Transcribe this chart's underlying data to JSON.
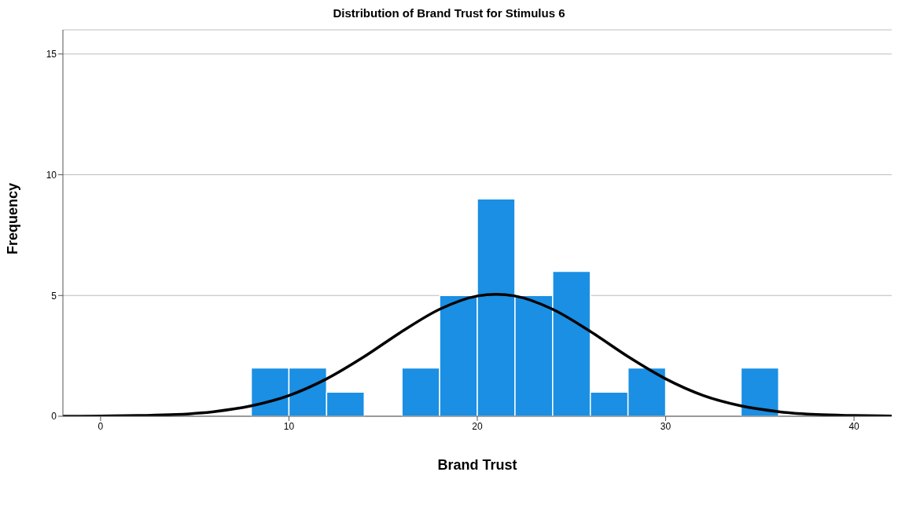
{
  "chart_data": {
    "type": "histogram",
    "title": "Distribution of Brand Trust for Stimulus 6",
    "xlabel": "Brand Trust",
    "ylabel": "Frequency",
    "bins": [
      8,
      10,
      12,
      14,
      16,
      18,
      20,
      22,
      24,
      26,
      28,
      30,
      32,
      34,
      36
    ],
    "series": [
      {
        "color": "#1a8fe3",
        "values": [
          2,
          2,
          1,
          0,
          2,
          5,
          9,
          5,
          6,
          1,
          2,
          0,
          0,
          2
        ]
      },
      {
        "type": "line",
        "color": "#000000",
        "x": [
          -2,
          0,
          2,
          4,
          6,
          8,
          10,
          12,
          14,
          16,
          18,
          20,
          21,
          22,
          24,
          26,
          28,
          30,
          32,
          34,
          36,
          38,
          40,
          42
        ],
        "values": [
          0,
          0.01,
          0.03,
          0.07,
          0.19,
          0.43,
          0.86,
          1.55,
          2.47,
          3.51,
          4.43,
          4.98,
          5.05,
          4.98,
          4.43,
          3.51,
          2.47,
          1.55,
          0.86,
          0.43,
          0.19,
          0.07,
          0.03,
          0.01
        ]
      }
    ],
    "xlim": [
      -2,
      42
    ],
    "xticks": [
      0,
      10,
      20,
      30,
      40
    ],
    "ylim": [
      0,
      16
    ],
    "yticks": [
      0,
      5,
      10,
      15
    ],
    "grid": "y",
    "marker": "none",
    "line_style": "solid"
  }
}
